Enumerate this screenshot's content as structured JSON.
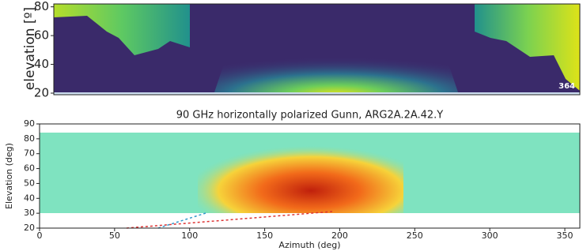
{
  "chart_data": [
    {
      "type": "heatmap",
      "y_label": "elevation [º]",
      "ylim": [
        20,
        82
      ],
      "yticks": [
        20,
        40,
        60,
        80
      ],
      "annotation": "364"
    },
    {
      "type": "heatmap",
      "title": "90 GHz horizontally polarized Gunn, ARG2A.2A.42.Y",
      "x_label": "Azimuth (deg)",
      "y_label": "Elevation (deg)",
      "xlim": [
        0,
        360
      ],
      "xticks": [
        0,
        50,
        100,
        150,
        200,
        250,
        300,
        350
      ],
      "ylim": [
        20,
        90
      ],
      "yticks": [
        20,
        30,
        40,
        50,
        60,
        70,
        80,
        90
      ]
    }
  ]
}
